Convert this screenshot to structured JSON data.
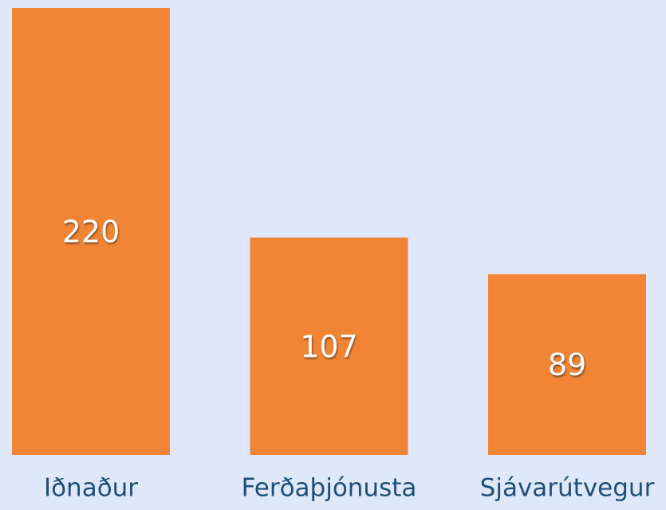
{
  "chart_data": {
    "type": "bar",
    "categories": [
      "Iðnaður",
      "Ferðaþjónusta",
      "Sjávarútvegur"
    ],
    "values": [
      220,
      107,
      89
    ],
    "color": "#f28535"
  }
}
